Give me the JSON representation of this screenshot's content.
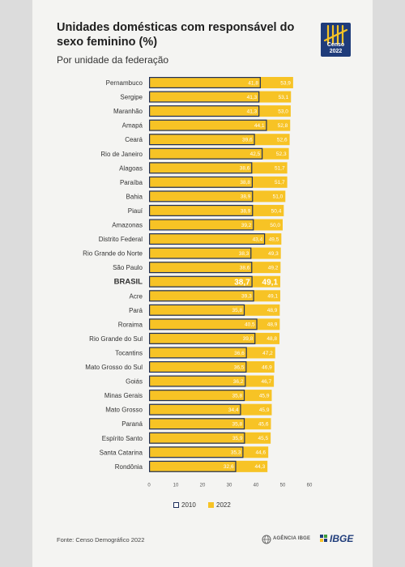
{
  "header": {
    "title": "Unidades domésticas com responsável do sexo feminino (%)",
    "subtitle": "Por unidade da federação"
  },
  "logo": {
    "icon": "censo-tally-icon",
    "text": "Censo 2022"
  },
  "footer": {
    "source": "Fonte: Censo Demográfico 2022",
    "agency": "AGÊNCIA IBGE",
    "ibge": "IBGE"
  },
  "colors": {
    "bar_2022": "#f7c325",
    "bar_2010_stroke": "#1e2f5c",
    "text": "#333333"
  },
  "chart_data": {
    "type": "bar",
    "orientation": "horizontal",
    "title": "Unidades domésticas com responsável do sexo feminino (%)",
    "subtitle": "Por unidade da federação",
    "categories": [
      "Pernambuco",
      "Sergipe",
      "Maranhão",
      "Amapá",
      "Ceará",
      "Rio de Janeiro",
      "Alagoas",
      "Paraíba",
      "Bahia",
      "Piauí",
      "Amazonas",
      "Distrito Federal",
      "Rio Grande do Norte",
      "São Paulo",
      "BRASIL",
      "Acre",
      "Pará",
      "Roraima",
      "Rio Grande do Sul",
      "Tocantins",
      "Mato Grosso do Sul",
      "Goiás",
      "Minas Gerais",
      "Mato Grosso",
      "Paraná",
      "Espírito Santo",
      "Santa Catarina",
      "Rondônia"
    ],
    "highlight": "BRASIL",
    "series": [
      {
        "name": "2010",
        "values": [
          41.8,
          41.3,
          41.3,
          44.1,
          39.6,
          42.5,
          38.6,
          38.8,
          38.9,
          38.9,
          39.2,
          43.4,
          38.3,
          38.6,
          38.7,
          39.3,
          35.8,
          40.5,
          39.8,
          36.6,
          36.5,
          36.2,
          35.8,
          34.4,
          35.8,
          35.9,
          35.3,
          32.6
        ]
      },
      {
        "name": "2022",
        "values": [
          53.9,
          53.1,
          53.0,
          52.8,
          52.6,
          52.3,
          51.7,
          51.7,
          51.0,
          50.4,
          50.0,
          49.5,
          49.3,
          49.2,
          49.1,
          49.1,
          48.9,
          48.9,
          48.8,
          47.2,
          46.9,
          46.7,
          45.9,
          45.9,
          45.6,
          45.5,
          44.6,
          44.3
        ]
      }
    ],
    "xlim": [
      0,
      60
    ],
    "xticks": [
      0,
      10,
      20,
      30,
      40,
      50,
      60
    ],
    "legend": [
      "2010",
      "2022"
    ],
    "legend_position": "bottom"
  }
}
